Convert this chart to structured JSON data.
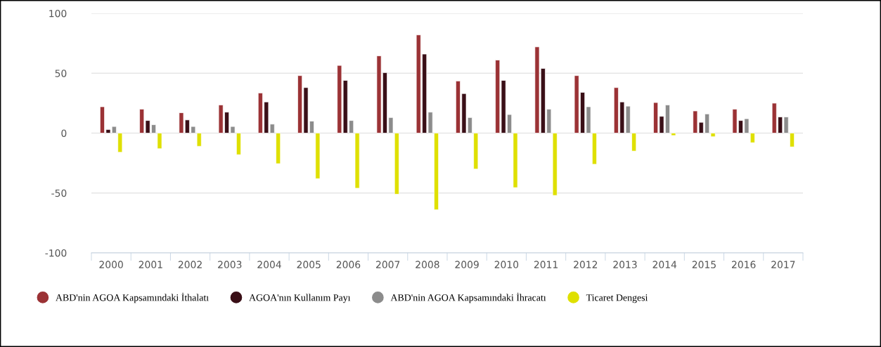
{
  "chart_data": {
    "type": "bar",
    "categories": [
      "2000",
      "2001",
      "2002",
      "2003",
      "2004",
      "2005",
      "2006",
      "2007",
      "2008",
      "2009",
      "2010",
      "2011",
      "2012",
      "2013",
      "2014",
      "2015",
      "2016",
      "2017"
    ],
    "series": [
      {
        "name": "ABD'nin AGOA Kapsamındaki İthalatı",
        "color": "#9b3235",
        "values": [
          22,
          20,
          17,
          23.5,
          33.5,
          48,
          56.5,
          64.5,
          82,
          43.5,
          61,
          72,
          48,
          38,
          25.5,
          18.5,
          20,
          25
        ]
      },
      {
        "name": "AGOA'nın Kullanım Payı",
        "color": "#3a0f17",
        "values": [
          3,
          10.5,
          11,
          17.5,
          26,
          38,
          44,
          50.5,
          66,
          33,
          44,
          54,
          34,
          26,
          14,
          9,
          10.5,
          13.5
        ]
      },
      {
        "name": "ABD'nin AGOA Kapsamındaki İhracatı",
        "color": "#8c8c8c",
        "values": [
          5.5,
          7,
          5.5,
          5.5,
          7.5,
          10,
          10.5,
          13,
          17.5,
          13,
          15.5,
          20,
          22,
          22.5,
          23.5,
          16,
          12,
          13.5
        ]
      },
      {
        "name": "Ticaret Dengesi",
        "color": "#dfe000",
        "values": [
          -16,
          -13,
          -11,
          -18,
          -25.5,
          -38,
          -46,
          -51,
          -64,
          -30,
          -45.5,
          -52,
          -26,
          -15,
          -2,
          -3,
          -8,
          -11.5
        ]
      }
    ],
    "ylim": [
      -100,
      100
    ],
    "yticks": [
      -100,
      -50,
      0,
      50,
      100
    ],
    "grid": "y",
    "legend": "bottom"
  }
}
